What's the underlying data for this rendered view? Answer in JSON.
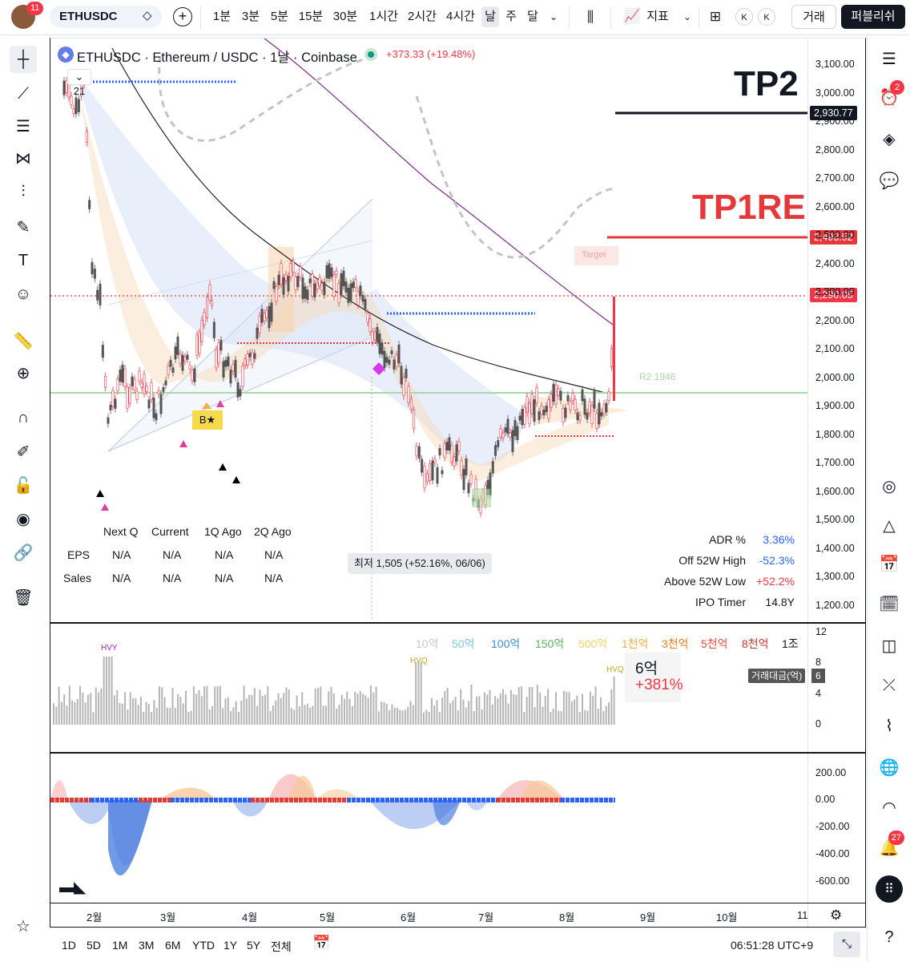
{
  "topbar": {
    "avatar_badge": "11",
    "symbol": "ETHUSDC",
    "intervals": [
      "1분",
      "3분",
      "5분",
      "15분",
      "30분",
      "1시간",
      "2시간",
      "4시간",
      "날",
      "주",
      "달"
    ],
    "selected_interval": "날",
    "indicators_label": "지표",
    "k1": "K",
    "k2": "K",
    "trade_label": "거래",
    "publish_label": "퍼블리쉬"
  },
  "legend": {
    "title": "ETHUSDC · Ethereum / USDC · 1날 · Coinbase",
    "change": "+373.33 (+19.48%)",
    "collapse_count": "21"
  },
  "annotations": {
    "tp2": "TP2",
    "tp1re": "TP1RE",
    "r2": "R2 1946",
    "low_tooltip": "최저 1,505 (+52.16%, 06/06)",
    "b_marker": "B★",
    "hvy": "HVY",
    "hvq1": "HVQ",
    "hvq2": "HVQ",
    "target": "Target"
  },
  "fundamentals": {
    "headers": [
      "Next Q",
      "Current",
      "1Q Ago",
      "2Q Ago"
    ],
    "rows": [
      {
        "label": "EPS",
        "values": [
          "N/A",
          "N/A",
          "N/A",
          "N/A"
        ]
      },
      {
        "label": "Sales",
        "values": [
          "N/A",
          "N/A",
          "N/A",
          "N/A"
        ]
      }
    ]
  },
  "stats": [
    {
      "label": "ADR %",
      "value": "3.36%",
      "color": "#2962ff"
    },
    {
      "label": "Off 52W High",
      "value": "-52.3%",
      "color": "#2962ff"
    },
    {
      "label": "Above 52W Low",
      "value": "+52.2%",
      "color": "#f23645"
    },
    {
      "label": "IPO Timer",
      "value": "14.8Y",
      "color": "#131722"
    }
  ],
  "price_axis": [
    "3,100.00",
    "3,000.00",
    "2,900.00",
    "2,800.00",
    "2,700.00",
    "2,600.00",
    "2,500.00",
    "2,400.00",
    "2,300.00",
    "2,200.00",
    "2,100.00",
    "2,000.00",
    "1,900.00",
    "1,800.00",
    "1,700.00",
    "1,600.00",
    "1,500.00",
    "1,400.00",
    "1,300.00",
    "1,200.00"
  ],
  "price_tags": [
    {
      "value": "2,930.77",
      "color": "#131722"
    },
    {
      "value": "2,493.52",
      "color": "#e5383b"
    },
    {
      "value": "2,290.05",
      "color": "#f23645"
    }
  ],
  "volume": {
    "scale_labels": [
      {
        "text": "10억",
        "color": "#c8c8c8"
      },
      {
        "text": "50억",
        "color": "#7ec8e3"
      },
      {
        "text": "100억",
        "color": "#3d8fd1"
      },
      {
        "text": "150억",
        "color": "#5cb85c"
      },
      {
        "text": "500억",
        "color": "#f0d264"
      },
      {
        "text": "1천억",
        "color": "#f5b041"
      },
      {
        "text": "3천억",
        "color": "#e67e22"
      },
      {
        "text": "5천억",
        "color": "#e74c3c"
      },
      {
        "text": "8천억",
        "color": "#c0392b"
      },
      {
        "text": "1조",
        "color": "#131722"
      }
    ],
    "axis": [
      "12",
      "8",
      "4",
      "0"
    ],
    "tag_label": "거래대금(억)",
    "tag_value": "6",
    "current": "6억",
    "current_change": "+381%"
  },
  "oscillator_axis": [
    "200.00",
    "0.00",
    "-200.00",
    "-400.00",
    "-600.00"
  ],
  "time_axis": [
    "2월",
    "3월",
    "4월",
    "5월",
    "6월",
    "7월",
    "8월",
    "9월",
    "10월",
    "11"
  ],
  "bottombar": {
    "ranges": [
      "1D",
      "5D",
      "1M",
      "3M",
      "6M",
      "YTD",
      "1Y",
      "5Y",
      "전체"
    ],
    "clock": "06:51:28 UTC+9"
  },
  "right_badges": {
    "alerts": "2",
    "notifications": "27"
  },
  "colors": {
    "up": "#f23645",
    "down": "#555555",
    "accent": "#2962ff"
  }
}
